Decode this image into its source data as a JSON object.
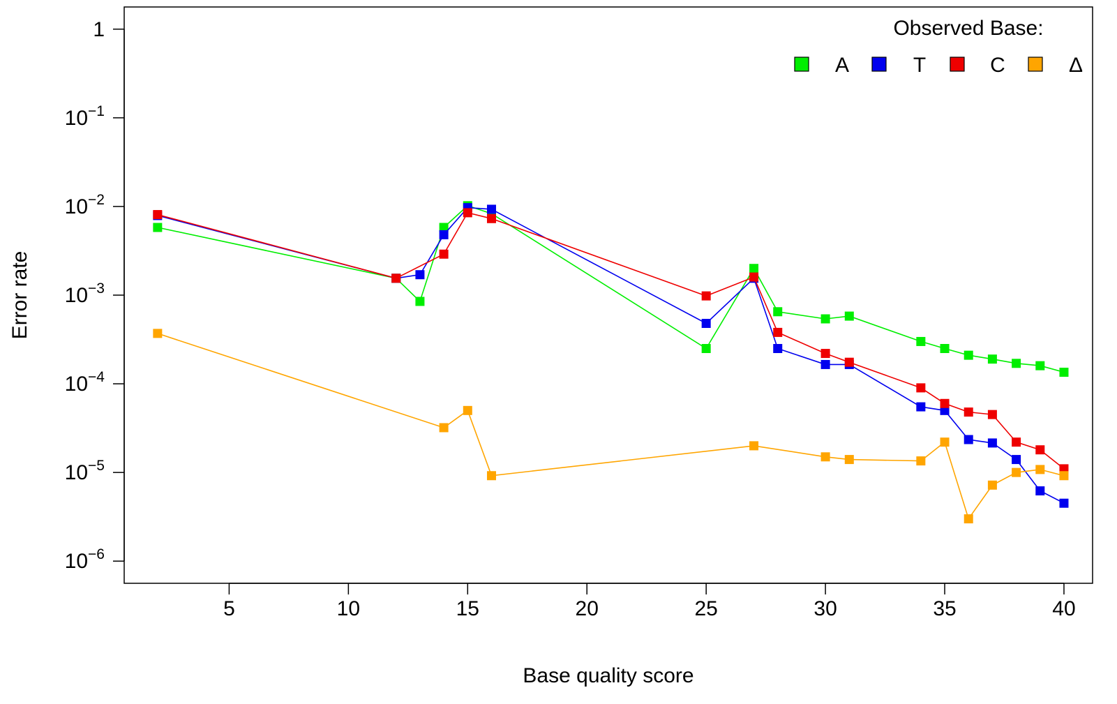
{
  "chart_data": {
    "type": "line",
    "title": "",
    "xlabel": "Base quality score",
    "ylabel": "Error rate",
    "y_scale": "log10",
    "xlim": [
      0.6,
      41.2
    ],
    "ylim_exp": [
      -6.25,
      0.25
    ],
    "x_ticks": [
      5,
      10,
      15,
      20,
      25,
      30,
      35,
      40
    ],
    "y_ticks": [
      {
        "exp": 0,
        "label": "1"
      },
      {
        "exp": -1,
        "base": "10",
        "sup": "−1"
      },
      {
        "exp": -2,
        "base": "10",
        "sup": "−2"
      },
      {
        "exp": -3,
        "base": "10",
        "sup": "−3"
      },
      {
        "exp": -4,
        "base": "10",
        "sup": "−4"
      },
      {
        "exp": -5,
        "base": "10",
        "sup": "−5"
      },
      {
        "exp": -6,
        "base": "10",
        "sup": "−6"
      }
    ],
    "grid": false,
    "legend": {
      "title": "Observed Base:",
      "position": "top-right",
      "entries": [
        "A",
        "T",
        "C",
        "Δ"
      ]
    },
    "series": [
      {
        "name": "A",
        "color": "#00ee00",
        "x": [
          2,
          12,
          13,
          14,
          15,
          16,
          25,
          27,
          28,
          30,
          31,
          34,
          35,
          36,
          37,
          38,
          39,
          40
        ],
        "y": [
          0.0058,
          0.00155,
          0.00085,
          0.0058,
          0.0102,
          0.0083,
          0.00025,
          0.002,
          0.00065,
          0.00054,
          0.00058,
          0.0003,
          0.00025,
          0.00021,
          0.00019,
          0.00017,
          0.00016,
          0.000135
        ]
      },
      {
        "name": "T",
        "color": "#0000ee",
        "x": [
          2,
          12,
          13,
          14,
          15,
          16,
          25,
          27,
          28,
          30,
          31,
          34,
          35,
          36,
          37,
          38,
          39,
          40
        ],
        "y": [
          0.0079,
          0.00155,
          0.0017,
          0.0048,
          0.0097,
          0.0093,
          0.00048,
          0.00155,
          0.00025,
          0.000165,
          0.000165,
          5.5e-05,
          5e-05,
          2.35e-05,
          2.15e-05,
          1.4e-05,
          6.2e-06,
          4.5e-06
        ]
      },
      {
        "name": "C",
        "color": "#ee0000",
        "x": [
          2,
          12,
          14,
          15,
          16,
          25,
          27,
          28,
          30,
          31,
          34,
          35,
          36,
          37,
          38,
          39,
          40
        ],
        "y": [
          0.0081,
          0.00155,
          0.0029,
          0.0085,
          0.0073,
          0.00098,
          0.0016,
          0.00038,
          0.00022,
          0.000175,
          9e-05,
          6e-05,
          4.8e-05,
          4.5e-05,
          2.2e-05,
          1.8e-05,
          1.1e-05
        ]
      },
      {
        "name": "Δ",
        "color": "#ffa500",
        "x": [
          2,
          14,
          15,
          16,
          27,
          30,
          31,
          34,
          35,
          36,
          37,
          38,
          39,
          40
        ],
        "y": [
          0.00037,
          3.2e-05,
          5e-05,
          9.2e-06,
          2e-05,
          1.5e-05,
          1.4e-05,
          1.35e-05,
          2.2e-05,
          3e-06,
          7.2e-06,
          1e-05,
          1.08e-05,
          9.2e-06
        ]
      }
    ]
  }
}
